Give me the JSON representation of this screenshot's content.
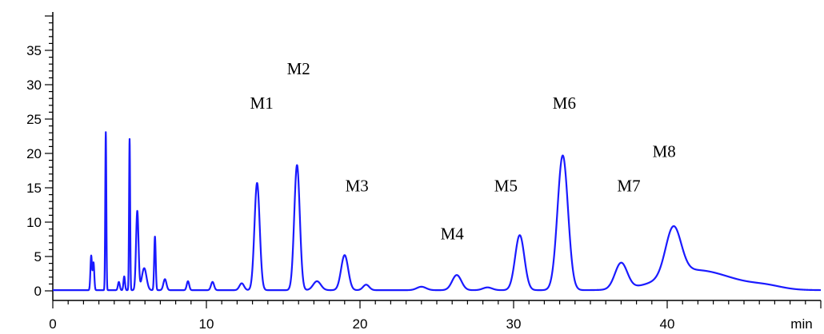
{
  "chart_data": {
    "type": "line",
    "title": "",
    "xlabel": "",
    "ylabel": "",
    "x_unit": "min",
    "xlim": [
      0,
      50
    ],
    "ylim": [
      -0.5,
      40
    ],
    "x_ticks": [
      0,
      10,
      20,
      30,
      40
    ],
    "y_ticks": [
      0,
      5,
      10,
      15,
      20,
      25,
      30,
      35
    ],
    "grid": false,
    "baseline": 0.1,
    "colors": {
      "trace": "#1a1aff",
      "axis": "#000000"
    },
    "series": [
      {
        "peaks": [
          {
            "x": 2.5,
            "height": 5.0,
            "width": 0.05
          },
          {
            "x": 2.65,
            "height": 4.0,
            "width": 0.05
          },
          {
            "x": 3.45,
            "height": 23.0,
            "width": 0.035
          },
          {
            "x": 4.3,
            "height": 1.2,
            "width": 0.06
          },
          {
            "x": 4.65,
            "height": 2.0,
            "width": 0.05
          },
          {
            "x": 5.0,
            "height": 22.0,
            "width": 0.035
          },
          {
            "x": 5.5,
            "height": 11.5,
            "width": 0.08
          },
          {
            "x": 5.95,
            "height": 3.2,
            "width": 0.15
          },
          {
            "x": 6.65,
            "height": 7.8,
            "width": 0.05
          },
          {
            "x": 7.3,
            "height": 1.6,
            "width": 0.1
          },
          {
            "x": 8.8,
            "height": 1.3,
            "width": 0.08
          },
          {
            "x": 10.4,
            "height": 1.2,
            "width": 0.1
          },
          {
            "x": 12.3,
            "height": 1.0,
            "width": 0.15
          },
          {
            "x": 13.3,
            "height": 15.6,
            "width": 0.17
          },
          {
            "x": 15.9,
            "height": 18.2,
            "width": 0.18
          },
          {
            "x": 17.2,
            "height": 1.3,
            "width": 0.25
          },
          {
            "x": 19.0,
            "height": 5.1,
            "width": 0.23
          },
          {
            "x": 20.4,
            "height": 0.8,
            "width": 0.2
          },
          {
            "x": 24.0,
            "height": 0.5,
            "width": 0.3
          },
          {
            "x": 26.3,
            "height": 2.2,
            "width": 0.3
          },
          {
            "x": 28.3,
            "height": 0.4,
            "width": 0.3
          },
          {
            "x": 30.4,
            "height": 8.0,
            "width": 0.3
          },
          {
            "x": 33.2,
            "height": 19.6,
            "width": 0.34
          },
          {
            "x": 37.0,
            "height": 3.8,
            "width": 0.4
          },
          {
            "x": 40.4,
            "height": 7.0,
            "width": 0.5
          },
          {
            "x": 41.5,
            "height": 2.5,
            "width": 2.0
          },
          {
            "x": 44.0,
            "height": 0.8,
            "width": 2.0
          },
          {
            "x": 46.5,
            "height": 0.4,
            "width": 1.0
          }
        ]
      }
    ],
    "annotations": [
      {
        "text": "M1",
        "x": 13.6,
        "y": 26.5
      },
      {
        "text": "M2",
        "x": 16.0,
        "y": 31.5
      },
      {
        "text": "M3",
        "x": 19.8,
        "y": 14.5
      },
      {
        "text": "M4",
        "x": 26.0,
        "y": 7.5
      },
      {
        "text": "M5",
        "x": 29.5,
        "y": 14.5
      },
      {
        "text": "M6",
        "x": 33.3,
        "y": 26.5
      },
      {
        "text": "M7",
        "x": 37.5,
        "y": 14.5
      },
      {
        "text": "M8",
        "x": 39.8,
        "y": 19.5
      }
    ]
  }
}
